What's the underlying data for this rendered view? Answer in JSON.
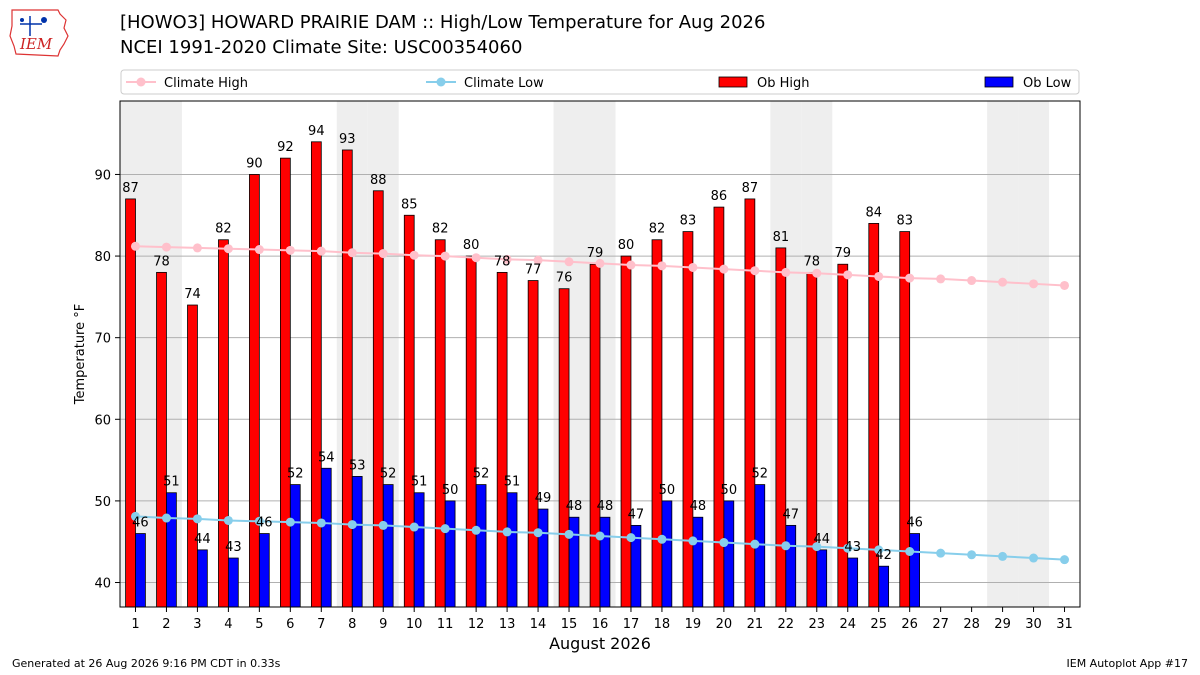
{
  "header": {
    "logo_text": "IEM",
    "title_line1": "[HOWO3] HOWARD PRAIRIE DAM :: High/Low Temperature for Aug 2026",
    "title_line2": "NCEI 1991-2020 Climate Site: USC00354060"
  },
  "footer": {
    "generated": "Generated at 26 Aug 2026 9:16 PM CDT in 0.33s",
    "app": "IEM Autoplot App #17"
  },
  "colors": {
    "ob_high": "#ff0000",
    "ob_low": "#0000ff",
    "climate_high": "#ffc0cb",
    "climate_low": "#87ceeb",
    "weekend_band": "#eeeeee",
    "grid": "#b0b0b0"
  },
  "chart_data": {
    "type": "bar",
    "xlabel": "August 2026",
    "ylabel": "Temperature °F",
    "ylim": [
      37,
      99
    ],
    "yticks": [
      40,
      50,
      60,
      70,
      80,
      90
    ],
    "grid": "horizontal",
    "legend_position": "top",
    "categories": [
      "1",
      "2",
      "3",
      "4",
      "5",
      "6",
      "7",
      "8",
      "9",
      "10",
      "11",
      "12",
      "13",
      "14",
      "15",
      "16",
      "17",
      "18",
      "19",
      "20",
      "21",
      "22",
      "23",
      "24",
      "25",
      "26",
      "27",
      "28",
      "29",
      "30",
      "31"
    ],
    "shaded_days": [
      1,
      2,
      8,
      9,
      15,
      16,
      22,
      23,
      29,
      30
    ],
    "series": [
      {
        "name": "Ob High",
        "kind": "bar",
        "values": [
          87,
          78,
          74,
          82,
          90,
          92,
          94,
          93,
          88,
          85,
          82,
          80,
          78,
          77,
          76,
          79,
          80,
          82,
          83,
          86,
          87,
          81,
          78,
          79,
          84,
          83,
          null,
          null,
          null,
          null,
          null
        ]
      },
      {
        "name": "Ob Low",
        "kind": "bar",
        "values": [
          46,
          51,
          44,
          43,
          46,
          52,
          54,
          53,
          52,
          51,
          50,
          52,
          51,
          49,
          48,
          48,
          47,
          50,
          48,
          50,
          52,
          47,
          44,
          43,
          42,
          46,
          null,
          null,
          null,
          null,
          null
        ]
      },
      {
        "name": "Climate High",
        "kind": "line",
        "values": [
          81.2,
          81.1,
          81.0,
          80.9,
          80.8,
          80.7,
          80.6,
          80.4,
          80.3,
          80.1,
          80.0,
          79.8,
          79.6,
          79.5,
          79.3,
          79.1,
          78.9,
          78.8,
          78.6,
          78.4,
          78.2,
          78.0,
          77.9,
          77.7,
          77.5,
          77.3,
          77.2,
          77.0,
          76.8,
          76.6,
          76.4
        ]
      },
      {
        "name": "Climate Low",
        "kind": "line",
        "values": [
          48.1,
          47.9,
          47.8,
          47.6,
          47.5,
          47.4,
          47.3,
          47.1,
          47.0,
          46.8,
          46.6,
          46.4,
          46.2,
          46.1,
          45.9,
          45.7,
          45.5,
          45.3,
          45.1,
          44.9,
          44.7,
          44.5,
          44.4,
          44.2,
          44.0,
          43.8,
          43.6,
          43.4,
          43.2,
          43.0,
          42.8
        ]
      }
    ]
  }
}
